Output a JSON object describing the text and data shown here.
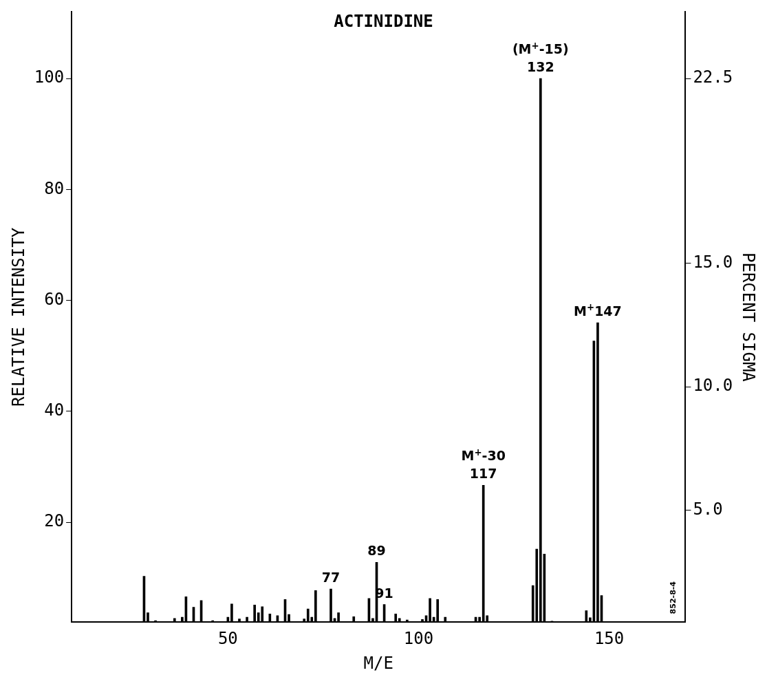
{
  "chart_data": {
    "type": "bar",
    "title": "ACTINIDINE",
    "xlabel": "M/E",
    "ylabel": "RELATIVE INTENSITY",
    "y2label": "PERCENT SIGMA",
    "color": "#000000",
    "x": [
      28,
      29,
      31,
      36,
      38,
      39,
      41,
      43,
      46,
      50,
      51,
      53,
      55,
      57,
      58,
      59,
      61,
      63,
      65,
      66,
      70,
      71,
      72,
      73,
      77,
      78,
      79,
      83,
      87,
      88,
      89,
      91,
      94,
      95,
      97,
      101,
      102,
      103,
      104,
      105,
      107,
      115,
      116,
      117,
      118,
      130,
      131,
      132,
      133,
      135,
      144,
      145,
      146,
      147,
      148
    ],
    "values": [
      10.3,
      3.7,
      2.3,
      2.7,
      2.9,
      6.6,
      4.7,
      5.9,
      2.3,
      2.9,
      5.3,
      2.6,
      2.9,
      5.1,
      3.7,
      4.8,
      3.5,
      3.2,
      6.1,
      3.4,
      2.6,
      4.4,
      2.9,
      7.7,
      8,
      2.7,
      3.7,
      3,
      6.3,
      2.7,
      12.8,
      5.2,
      3.5,
      2.7,
      2.4,
      2.5,
      3.2,
      6.3,
      2.9,
      6.1,
      2.9,
      2.9,
      2.9,
      26.7,
      3.2,
      8.6,
      15.2,
      100,
      14.3,
      2.2,
      4.1,
      2.8,
      52.7,
      56,
      6.8
    ],
    "xlim": [
      9,
      170
    ],
    "xticks": [
      50,
      100,
      150
    ],
    "ylim": [
      2,
      112
    ],
    "yticks": [
      20,
      40,
      60,
      80,
      100
    ],
    "y2lim": [
      0.45,
      25.2
    ],
    "y2ticks": [
      {
        "value": 5,
        "label": "5.0"
      },
      {
        "value": 10,
        "label": "10.0"
      },
      {
        "value": 15,
        "label": "15.0"
      },
      {
        "value": 22.5,
        "label": "22.5"
      }
    ],
    "grid": false,
    "legend": false,
    "annotations": [
      {
        "text": "(M$^{+}$-15)\n132",
        "x": 132,
        "y": 100
      },
      {
        "text": "M$^{+}$147",
        "x": 147,
        "y": 56
      },
      {
        "text": "M$^{+}$-30\n117",
        "x": 117,
        "y": 26.7
      },
      {
        "text": "89",
        "x": 89,
        "y": 12.8
      },
      {
        "text": "91",
        "x": 91,
        "y": 5.2
      },
      {
        "text": "77",
        "x": 77,
        "y": 8
      },
      "852-8-4"
    ]
  }
}
